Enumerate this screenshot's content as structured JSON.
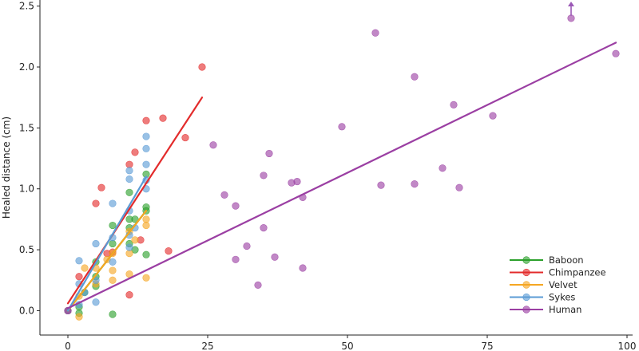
{
  "chart_data": {
    "type": "scatter",
    "ylabel": "Healed distance (cm)",
    "xlabel": "",
    "xlim": [
      -5,
      101
    ],
    "ylim": [
      -0.2,
      2.55
    ],
    "xticks": [
      0,
      25,
      50,
      75,
      100
    ],
    "yticks": [
      0.0,
      0.5,
      1.0,
      1.5,
      2.0,
      2.5
    ],
    "grid": false,
    "legend_position": "bottom-right",
    "annotations": [
      {
        "type": "upward-arrow",
        "x": 90,
        "y_from": 2.42,
        "y_to": 2.58,
        "color": "#9b59b6"
      }
    ],
    "series": [
      {
        "name": "Baboon",
        "color": "#2ca02c",
        "points": [
          [
            0,
            0.0
          ],
          [
            2,
            0.03
          ],
          [
            2,
            -0.02
          ],
          [
            3,
            0.15
          ],
          [
            5,
            0.2
          ],
          [
            5,
            0.28
          ],
          [
            5,
            0.4
          ],
          [
            8,
            0.55
          ],
          [
            8,
            0.7
          ],
          [
            8,
            -0.03
          ],
          [
            11,
            0.55
          ],
          [
            11,
            0.68
          ],
          [
            11,
            0.75
          ],
          [
            11,
            0.97
          ],
          [
            12,
            0.5
          ],
          [
            12,
            0.75
          ],
          [
            14,
            0.85
          ],
          [
            14,
            0.82
          ],
          [
            14,
            1.12
          ],
          [
            14,
            0.46
          ]
        ],
        "fit": [
          [
            0,
            0.0
          ],
          [
            14,
            0.82
          ]
        ]
      },
      {
        "name": "Chimpanzee",
        "color": "#e32b2b",
        "points": [
          [
            0,
            0.0
          ],
          [
            2,
            0.28
          ],
          [
            5,
            0.88
          ],
          [
            6,
            1.01
          ],
          [
            7,
            0.47
          ],
          [
            8,
            0.48
          ],
          [
            11,
            0.13
          ],
          [
            11,
            1.2
          ],
          [
            12,
            1.3
          ],
          [
            13,
            0.58
          ],
          [
            14,
            1.56
          ],
          [
            17,
            1.58
          ],
          [
            18,
            0.49
          ],
          [
            21,
            1.42
          ],
          [
            24,
            2.0
          ]
        ],
        "fit": [
          [
            0,
            0.06
          ],
          [
            24,
            1.75
          ]
        ]
      },
      {
        "name": "Velvet",
        "color": "#f5a623",
        "points": [
          [
            0,
            0.0
          ],
          [
            2,
            -0.05
          ],
          [
            2,
            0.12
          ],
          [
            3,
            0.35
          ],
          [
            5,
            0.22
          ],
          [
            5,
            0.35
          ],
          [
            7,
            0.42
          ],
          [
            8,
            0.25
          ],
          [
            8,
            0.33
          ],
          [
            8,
            0.47
          ],
          [
            11,
            0.3
          ],
          [
            11,
            0.47
          ],
          [
            11,
            0.65
          ],
          [
            12,
            0.58
          ],
          [
            14,
            0.27
          ],
          [
            14,
            0.7
          ],
          [
            14,
            0.75
          ]
        ],
        "fit": [
          [
            0,
            0.0
          ],
          [
            14,
            0.82
          ]
        ]
      },
      {
        "name": "Sykes",
        "color": "#5b9bd5",
        "points": [
          [
            0,
            0.0
          ],
          [
            2,
            0.22
          ],
          [
            2,
            0.41
          ],
          [
            2,
            0.05
          ],
          [
            3,
            0.15
          ],
          [
            5,
            0.07
          ],
          [
            5,
            0.55
          ],
          [
            5,
            0.25
          ],
          [
            8,
            0.4
          ],
          [
            8,
            0.88
          ],
          [
            8,
            0.6
          ],
          [
            11,
            0.52
          ],
          [
            11,
            0.62
          ],
          [
            11,
            0.82
          ],
          [
            11,
            1.08
          ],
          [
            11,
            1.15
          ],
          [
            12,
            0.68
          ],
          [
            14,
            1.0
          ],
          [
            14,
            1.2
          ],
          [
            14,
            1.33
          ],
          [
            14,
            1.43
          ],
          [
            14,
            1.07
          ]
        ],
        "fit": [
          [
            0,
            0.0
          ],
          [
            14,
            1.1
          ]
        ]
      },
      {
        "name": "Human",
        "color": "#9b3fa3",
        "points": [
          [
            0,
            0.0
          ],
          [
            26,
            1.36
          ],
          [
            28,
            0.95
          ],
          [
            30,
            0.86
          ],
          [
            30,
            0.42
          ],
          [
            32,
            0.53
          ],
          [
            34,
            0.21
          ],
          [
            35,
            0.68
          ],
          [
            35,
            1.11
          ],
          [
            36,
            1.29
          ],
          [
            37,
            0.44
          ],
          [
            40,
            1.05
          ],
          [
            41,
            1.06
          ],
          [
            42,
            0.35
          ],
          [
            42,
            0.93
          ],
          [
            49,
            1.51
          ],
          [
            55,
            2.28
          ],
          [
            56,
            1.03
          ],
          [
            62,
            1.04
          ],
          [
            62,
            1.92
          ],
          [
            67,
            1.17
          ],
          [
            69,
            1.69
          ],
          [
            70,
            1.01
          ],
          [
            76,
            1.6
          ],
          [
            90,
            2.4
          ],
          [
            98,
            2.11
          ]
        ],
        "fit": [
          [
            0,
            0.02
          ],
          [
            98,
            2.2
          ]
        ]
      }
    ]
  }
}
